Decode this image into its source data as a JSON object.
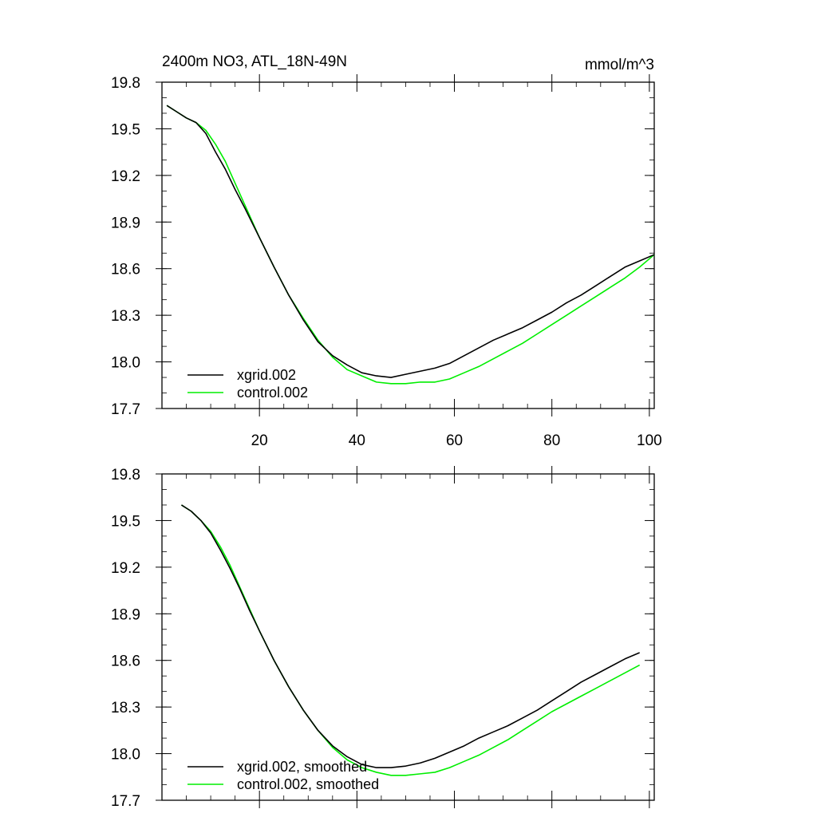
{
  "header": {
    "title": "2400m NO3, ATL_18N-49N",
    "units": "mmol/m^3"
  },
  "colors": {
    "series1": "#000000",
    "series2": "#00ee00",
    "axis": "#000000",
    "background": "#ffffff"
  },
  "chart_data": [
    {
      "type": "line",
      "title": "2400m NO3, ATL_18N-49N",
      "units_label": "mmol/m^3",
      "xlabel": "",
      "ylabel": "",
      "xlim": [
        0,
        101
      ],
      "ylim": [
        17.7,
        19.8
      ],
      "xticks": [
        20,
        40,
        60,
        80,
        100
      ],
      "yticks": [
        17.7,
        18.0,
        18.3,
        18.6,
        18.9,
        19.2,
        19.5,
        19.8
      ],
      "ytick_labels": [
        "17.7",
        "18.0",
        "18.3",
        "18.6",
        "18.9",
        "19.2",
        "19.5",
        "19.8"
      ],
      "xtick_labels": [
        "20",
        "40",
        "60",
        "80",
        "100"
      ],
      "legend_position": "bottom-left",
      "grid": false,
      "series": [
        {
          "name": "xgrid.002",
          "color": "#000000",
          "x": [
            1,
            3,
            5,
            7,
            9,
            11,
            13,
            15,
            17,
            20,
            23,
            26,
            29,
            32,
            35,
            38,
            41,
            44,
            47,
            50,
            53,
            56,
            59,
            62,
            65,
            68,
            71,
            74,
            77,
            80,
            83,
            86,
            89,
            92,
            95,
            98,
            101
          ],
          "y": [
            19.65,
            19.61,
            19.57,
            19.54,
            19.47,
            19.35,
            19.24,
            19.11,
            18.99,
            18.8,
            18.61,
            18.43,
            18.27,
            18.13,
            18.04,
            17.98,
            17.93,
            17.91,
            17.9,
            17.92,
            17.94,
            17.96,
            17.99,
            18.04,
            18.09,
            18.14,
            18.18,
            18.22,
            18.27,
            18.32,
            18.38,
            18.43,
            18.49,
            18.55,
            18.61,
            18.65,
            18.69
          ]
        },
        {
          "name": "control.002",
          "color": "#00ee00",
          "x": [
            1,
            3,
            5,
            7,
            9,
            11,
            13,
            15,
            17,
            20,
            23,
            26,
            29,
            32,
            35,
            38,
            41,
            44,
            47,
            50,
            53,
            56,
            59,
            62,
            65,
            68,
            71,
            74,
            77,
            80,
            83,
            86,
            89,
            92,
            95,
            98,
            101
          ],
          "y": [
            19.65,
            19.61,
            19.57,
            19.54,
            19.49,
            19.4,
            19.29,
            19.15,
            19.01,
            18.8,
            18.61,
            18.43,
            18.28,
            18.14,
            18.03,
            17.95,
            17.91,
            17.87,
            17.86,
            17.86,
            17.87,
            17.87,
            17.89,
            17.93,
            17.97,
            18.02,
            18.07,
            18.12,
            18.18,
            18.24,
            18.3,
            18.36,
            18.42,
            18.48,
            18.54,
            18.61,
            18.69
          ]
        }
      ]
    },
    {
      "type": "line",
      "title": "",
      "xlabel": "",
      "ylabel": "",
      "xlim": [
        0,
        101
      ],
      "ylim": [
        17.7,
        19.8
      ],
      "xticks": [
        20,
        40,
        60,
        80,
        100
      ],
      "yticks": [
        17.7,
        18.0,
        18.3,
        18.6,
        18.9,
        19.2,
        19.5,
        19.8
      ],
      "ytick_labels": [
        "17.7",
        "18.0",
        "18.3",
        "18.6",
        "18.9",
        "19.2",
        "19.5",
        "19.8"
      ],
      "xtick_labels": [],
      "legend_position": "bottom-left",
      "grid": false,
      "series": [
        {
          "name": "xgrid.002, smoothed",
          "color": "#000000",
          "x": [
            4,
            6,
            8,
            10,
            12,
            14,
            16,
            18,
            20,
            23,
            26,
            29,
            32,
            35,
            38,
            41,
            44,
            47,
            50,
            53,
            56,
            59,
            62,
            65,
            68,
            71,
            74,
            77,
            80,
            83,
            86,
            89,
            92,
            95,
            98
          ],
          "y": [
            19.6,
            19.56,
            19.5,
            19.42,
            19.31,
            19.19,
            19.06,
            18.92,
            18.79,
            18.6,
            18.43,
            18.28,
            18.15,
            18.05,
            17.98,
            17.93,
            17.91,
            17.91,
            17.92,
            17.94,
            17.97,
            18.01,
            18.05,
            18.1,
            18.14,
            18.18,
            18.23,
            18.28,
            18.34,
            18.4,
            18.46,
            18.51,
            18.56,
            18.61,
            18.65
          ]
        },
        {
          "name": "control.002, smoothed",
          "color": "#00ee00",
          "x": [
            4,
            6,
            8,
            10,
            12,
            14,
            16,
            18,
            20,
            23,
            26,
            29,
            32,
            35,
            38,
            41,
            44,
            47,
            50,
            53,
            56,
            59,
            62,
            65,
            68,
            71,
            74,
            77,
            80,
            83,
            86,
            89,
            92,
            95,
            98
          ],
          "y": [
            19.6,
            19.56,
            19.5,
            19.43,
            19.33,
            19.21,
            19.07,
            18.93,
            18.79,
            18.6,
            18.43,
            18.28,
            18.15,
            18.04,
            17.96,
            17.91,
            17.88,
            17.86,
            17.86,
            17.87,
            17.88,
            17.91,
            17.95,
            17.99,
            18.04,
            18.09,
            18.15,
            18.21,
            18.27,
            18.32,
            18.37,
            18.42,
            18.47,
            18.52,
            18.57
          ]
        }
      ]
    }
  ]
}
